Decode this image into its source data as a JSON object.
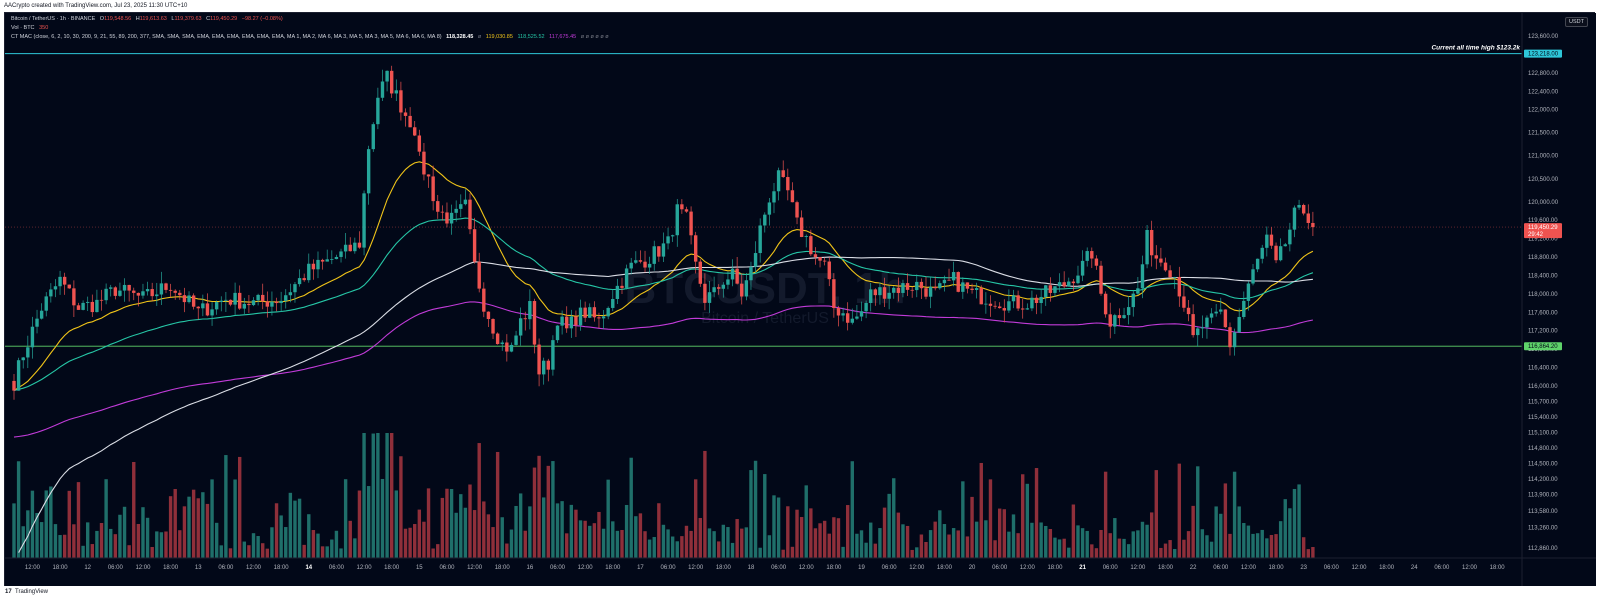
{
  "header": {
    "credit": "AACrypto created with TradingView.com, Jul 23, 2025 11:30 UTC+10"
  },
  "legend": {
    "symbol": "Bitcoin / TetherUS · 1h · BINANCE",
    "o_label": "O",
    "o": "119,548.56",
    "h_label": "H",
    "h": "119,613.63",
    "l_label": "L",
    "l": "119,379.63",
    "c_label": "C",
    "c": "119,450.29",
    "change": "−98.27 (−0.08%)",
    "vol_label": "Vol · BTC",
    "vol": "350",
    "indicator": "CT MAC (close, 6, 2, 10, 30, 200, 9, 21, 55, 89, 200, 377, SMA, SMA, SMA, EMA, EMA, EMA, EMA, EMA, EMA, MA 1, MA 2, MA 6, MA 3, MA 5, MA 3, MA 5, MA 6, MA 6, MA 8)",
    "ma_values": [
      "118,328.45",
      "119,030.85",
      "118,525.52",
      "117,675.45"
    ],
    "ma_colors": [
      "#ffffff",
      "#f0c419",
      "#26c6a6",
      "#c13bd8"
    ]
  },
  "currency": "USDT",
  "watermark": {
    "symbol": "BTCUSDT, 1h",
    "name": "Bitcoin / TetherUS"
  },
  "annotation": "Current all time high $123.2k",
  "price_tags": {
    "ath": "123,218.00",
    "last": "119,450.29",
    "countdown": "29:42",
    "support": "116,864.20"
  },
  "footer": {
    "brand_icon": "tradingview-logo-icon",
    "brand": "TradingView"
  },
  "chart_data": {
    "type": "candlestick",
    "interval": "1h",
    "y_axis_ticks": [
      123600,
      122800,
      122400,
      122000,
      121500,
      121000,
      120500,
      120000,
      119600,
      119200,
      118800,
      118400,
      118000,
      117600,
      117200,
      116800,
      116400,
      116000,
      115700,
      115400,
      115100,
      114800,
      114500,
      114200,
      113900,
      113580,
      113260,
      112860
    ],
    "y_tick_labels": [
      "123,600.00",
      "122,800.00",
      "122,400.00",
      "122,000.00",
      "121,500.00",
      "121,000.00",
      "120,500.00",
      "120,000.00",
      "119,600.00",
      "119,200.00",
      "118,800.00",
      "118,400.00",
      "118,000.00",
      "117,600.00",
      "117,200.00",
      "116,800.00",
      "116,400.00",
      "116,000.00",
      "115,700.00",
      "115,400.00",
      "115,100.00",
      "114,800.00",
      "114,500.00",
      "114,200.00",
      "113,900.00",
      "113,580.00",
      "113,260.00",
      "112,860.00"
    ],
    "x_axis_labels": [
      {
        "i": 4,
        "label": "12:00"
      },
      {
        "i": 10,
        "label": "18:00"
      },
      {
        "i": 16,
        "label": "12"
      },
      {
        "i": 22,
        "label": "06:00"
      },
      {
        "i": 28,
        "label": "12:00"
      },
      {
        "i": 34,
        "label": "18:00"
      },
      {
        "i": 40,
        "label": "13"
      },
      {
        "i": 46,
        "label": "06:00"
      },
      {
        "i": 52,
        "label": "12:00"
      },
      {
        "i": 58,
        "label": "18:00"
      },
      {
        "i": 64,
        "label": "14",
        "bold": true
      },
      {
        "i": 70,
        "label": "06:00"
      },
      {
        "i": 76,
        "label": "12:00"
      },
      {
        "i": 82,
        "label": "18:00"
      },
      {
        "i": 88,
        "label": "15"
      },
      {
        "i": 94,
        "label": "06:00"
      },
      {
        "i": 100,
        "label": "12:00"
      },
      {
        "i": 106,
        "label": "18:00"
      },
      {
        "i": 112,
        "label": "16"
      },
      {
        "i": 118,
        "label": "06:00"
      },
      {
        "i": 124,
        "label": "12:00"
      },
      {
        "i": 130,
        "label": "18:00"
      },
      {
        "i": 136,
        "label": "17"
      },
      {
        "i": 142,
        "label": "06:00"
      },
      {
        "i": 148,
        "label": "12:00"
      },
      {
        "i": 154,
        "label": "18:00"
      },
      {
        "i": 160,
        "label": "18"
      },
      {
        "i": 166,
        "label": "06:00"
      },
      {
        "i": 172,
        "label": "12:00"
      },
      {
        "i": 178,
        "label": "18:00"
      },
      {
        "i": 184,
        "label": "19"
      },
      {
        "i": 190,
        "label": "06:00"
      },
      {
        "i": 196,
        "label": "12:00"
      },
      {
        "i": 202,
        "label": "18:00"
      },
      {
        "i": 208,
        "label": "20"
      },
      {
        "i": 214,
        "label": "06:00"
      },
      {
        "i": 220,
        "label": "12:00"
      },
      {
        "i": 226,
        "label": "18:00"
      },
      {
        "i": 232,
        "label": "21",
        "bold": true
      },
      {
        "i": 238,
        "label": "06:00"
      },
      {
        "i": 244,
        "label": "12:00"
      },
      {
        "i": 250,
        "label": "18:00"
      },
      {
        "i": 256,
        "label": "22"
      },
      {
        "i": 262,
        "label": "06:00"
      },
      {
        "i": 268,
        "label": "12:00"
      },
      {
        "i": 274,
        "label": "18:00"
      },
      {
        "i": 280,
        "label": "23"
      },
      {
        "i": 286,
        "label": "06:00"
      },
      {
        "i": 292,
        "label": "12:00"
      },
      {
        "i": 298,
        "label": "18:00"
      },
      {
        "i": 304,
        "label": "24"
      },
      {
        "i": 310,
        "label": "06:00"
      },
      {
        "i": 316,
        "label": "12:00"
      },
      {
        "i": 322,
        "label": "18:00"
      },
      {
        "i": 328,
        "label": "25"
      }
    ],
    "close_path": [
      [
        0,
        116100
      ],
      [
        2,
        116700
      ],
      [
        6,
        117700
      ],
      [
        10,
        118300
      ],
      [
        14,
        117700
      ],
      [
        18,
        117800
      ],
      [
        22,
        118100
      ],
      [
        28,
        117900
      ],
      [
        34,
        118200
      ],
      [
        40,
        117600
      ],
      [
        46,
        117900
      ],
      [
        52,
        117800
      ],
      [
        58,
        117900
      ],
      [
        62,
        118300
      ],
      [
        64,
        118500
      ],
      [
        68,
        118700
      ],
      [
        72,
        118900
      ],
      [
        75,
        119100
      ],
      [
        77,
        121200
      ],
      [
        79,
        122300
      ],
      [
        81,
        122700
      ],
      [
        83,
        122300
      ],
      [
        85,
        121900
      ],
      [
        87,
        121600
      ],
      [
        88,
        120900
      ],
      [
        90,
        120500
      ],
      [
        92,
        119800
      ],
      [
        95,
        119600
      ],
      [
        98,
        119900
      ],
      [
        100,
        118600
      ],
      [
        102,
        117800
      ],
      [
        104,
        117300
      ],
      [
        106,
        116900
      ],
      [
        108,
        116800
      ],
      [
        110,
        117400
      ],
      [
        112,
        117700
      ],
      [
        114,
        116300
      ],
      [
        116,
        116500
      ],
      [
        118,
        117500
      ],
      [
        120,
        117200
      ],
      [
        122,
        117500
      ],
      [
        124,
        117600
      ],
      [
        127,
        117400
      ],
      [
        130,
        118000
      ],
      [
        134,
        118600
      ],
      [
        138,
        118800
      ],
      [
        142,
        119100
      ],
      [
        144,
        119800
      ],
      [
        146,
        119600
      ],
      [
        148,
        118600
      ],
      [
        150,
        117900
      ],
      [
        152,
        118000
      ],
      [
        154,
        118300
      ],
      [
        156,
        118400
      ],
      [
        158,
        118000
      ],
      [
        160,
        118500
      ],
      [
        162,
        119400
      ],
      [
        164,
        120100
      ],
      [
        166,
        120500
      ],
      [
        168,
        120200
      ],
      [
        170,
        119500
      ],
      [
        172,
        119200
      ],
      [
        174,
        118800
      ],
      [
        176,
        118600
      ],
      [
        178,
        117700
      ],
      [
        180,
        117600
      ],
      [
        182,
        117400
      ],
      [
        184,
        117600
      ],
      [
        186,
        118000
      ],
      [
        190,
        118100
      ],
      [
        196,
        118200
      ],
      [
        200,
        118000
      ],
      [
        204,
        118300
      ],
      [
        208,
        118000
      ],
      [
        212,
        117900
      ],
      [
        216,
        117800
      ],
      [
        220,
        117800
      ],
      [
        224,
        118000
      ],
      [
        228,
        118200
      ],
      [
        232,
        118600
      ],
      [
        234,
        118900
      ],
      [
        236,
        118000
      ],
      [
        238,
        117400
      ],
      [
        240,
        117600
      ],
      [
        242,
        117800
      ],
      [
        244,
        118100
      ],
      [
        246,
        119200
      ],
      [
        248,
        118800
      ],
      [
        250,
        118700
      ],
      [
        252,
        118400
      ],
      [
        254,
        117800
      ],
      [
        256,
        117000
      ],
      [
        258,
        117300
      ],
      [
        260,
        117400
      ],
      [
        262,
        117600
      ],
      [
        264,
        116900
      ],
      [
        266,
        117500
      ],
      [
        268,
        118200
      ],
      [
        270,
        118700
      ],
      [
        272,
        119200
      ],
      [
        274,
        118600
      ],
      [
        276,
        119100
      ],
      [
        278,
        119700
      ],
      [
        280,
        119800
      ],
      [
        282,
        119600
      ]
    ],
    "last_price": 119450.29,
    "ath_line": 123218,
    "support_line": 116864.2,
    "moving_averages": [
      {
        "color": "#f0c419",
        "period": 21,
        "type": "EMA"
      },
      {
        "color": "#26c6a6",
        "period": 55,
        "type": "EMA"
      },
      {
        "color": "#c13bd8",
        "period": 200,
        "type": "EMA"
      },
      {
        "color": "#dadde5",
        "period": 200,
        "type": "SMA"
      }
    ],
    "colors": {
      "up": "#26a69a",
      "down": "#ef5350",
      "background": "#020818",
      "ath_line": "#2ec7d9",
      "support_line": "#5fd36a",
      "last_line": "#ef5350",
      "axis_text": "#b2b5be"
    }
  }
}
